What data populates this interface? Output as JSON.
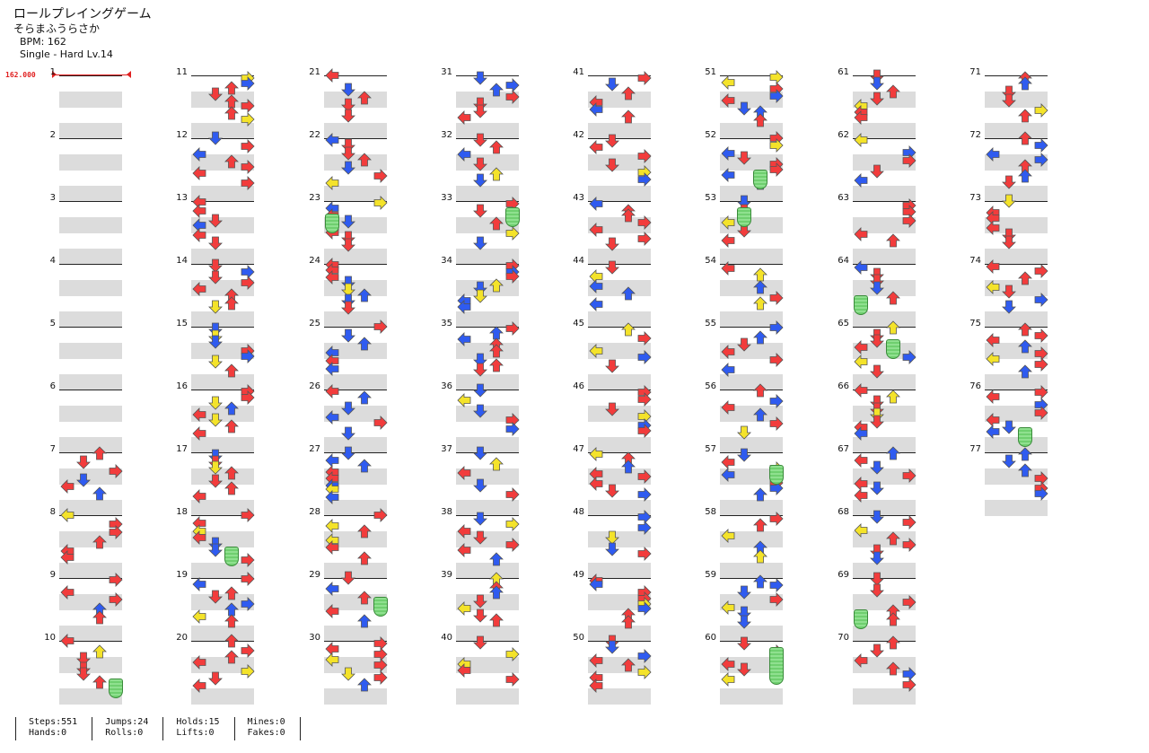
{
  "song": {
    "title": "ロールプレイングゲーム",
    "artist": "そらまふうらさか",
    "bpm_label": "BPM: 162",
    "difficulty_label": "Single - Hard  Lv.14",
    "bpm_marker": "162.000"
  },
  "measures": {
    "count": 77,
    "labels": [
      "1",
      "2",
      "3",
      "4",
      "5",
      "6",
      "7",
      "8",
      "9",
      "10",
      "11",
      "12",
      "13",
      "14",
      "15",
      "16",
      "17",
      "18",
      "19",
      "20",
      "21",
      "22",
      "23",
      "24",
      "25",
      "26",
      "27",
      "28",
      "29",
      "30",
      "31",
      "32",
      "33",
      "34",
      "35",
      "36",
      "37",
      "38",
      "39",
      "40",
      "41",
      "42",
      "43",
      "44",
      "45",
      "46",
      "47",
      "48",
      "49",
      "50",
      "51",
      "52",
      "53",
      "54",
      "55",
      "56",
      "57",
      "58",
      "59",
      "60",
      "61",
      "62",
      "63",
      "64",
      "65",
      "66",
      "67",
      "68",
      "69",
      "70",
      "71",
      "72",
      "73",
      "74",
      "75",
      "76",
      "77"
    ],
    "note_colors": {
      "red": "#f23c3c",
      "blue": "#2f5bf0",
      "yellow": "#f4e32a",
      "hold": "#6fcf6f"
    },
    "lanes": [
      "left",
      "down",
      "up",
      "right"
    ],
    "notes_shown": "approximate transcription of arrow pattern per measure"
  },
  "stats": {
    "steps": "Steps:551",
    "hands": "Hands:0",
    "jumps": "Jumps:24",
    "rolls": "Rolls:0",
    "holds": "Holds:15",
    "lifts": "Lifts:0",
    "mines": "Mines:0",
    "fakes": "Fakes:0"
  }
}
